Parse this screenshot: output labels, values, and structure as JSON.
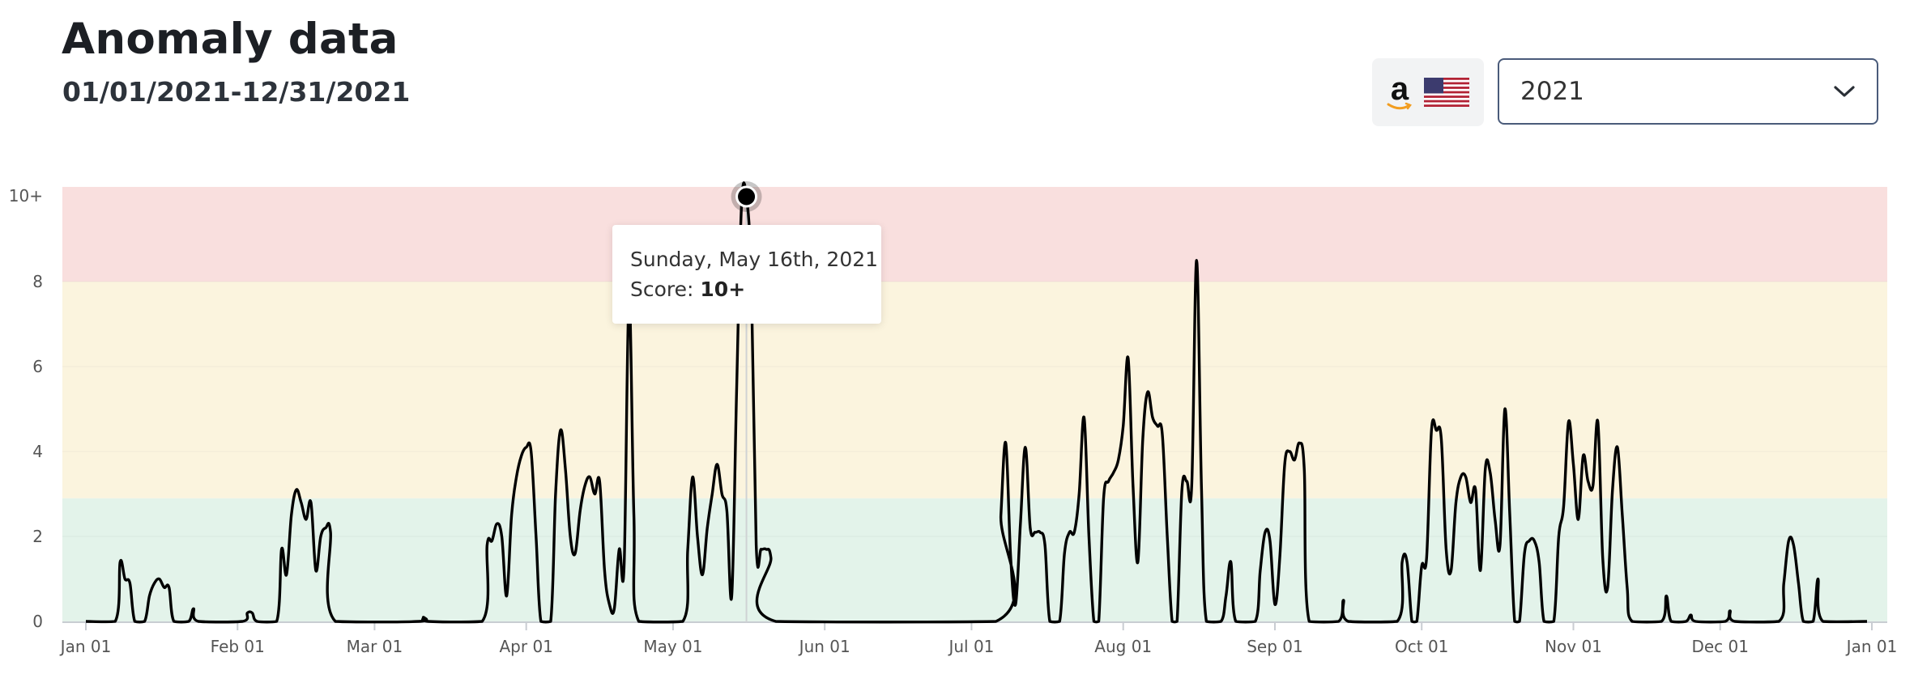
{
  "header": {
    "title": "Anomaly data",
    "date_range": "01/01/2021-12/31/2021"
  },
  "marketplace": {
    "logo_icon": "amazon-logo-icon",
    "logo_letter": "a",
    "flag_icon": "us-flag-icon"
  },
  "year_select": {
    "value": "2021",
    "icon": "chevron-down-icon"
  },
  "tooltip": {
    "date": "Sunday, May 16th, 2021",
    "score_label": "Score:",
    "score_value": "10+"
  },
  "colors": {
    "band_high": "#f9dfde",
    "band_medium": "#fbf4de",
    "band_low": "#e3f3ea",
    "line": "#000000"
  },
  "chart_data": {
    "type": "line",
    "title": "",
    "xlabel": "",
    "ylabel": "",
    "ylim": [
      0,
      10
    ],
    "y_ticks": [
      {
        "value": 0,
        "label": "0"
      },
      {
        "value": 2,
        "label": "2"
      },
      {
        "value": 4,
        "label": "4"
      },
      {
        "value": 6,
        "label": "6"
      },
      {
        "value": 8,
        "label": "8"
      },
      {
        "value": 10,
        "label": "10+"
      }
    ],
    "x_ticks": [
      {
        "date": "2021-01-01",
        "label": "Jan 01"
      },
      {
        "date": "2021-02-01",
        "label": "Feb 01"
      },
      {
        "date": "2021-03-01",
        "label": "Mar 01"
      },
      {
        "date": "2021-04-01",
        "label": "Apr 01"
      },
      {
        "date": "2021-05-01",
        "label": "May 01"
      },
      {
        "date": "2021-06-01",
        "label": "Jun 01"
      },
      {
        "date": "2021-07-01",
        "label": "Jul 01"
      },
      {
        "date": "2021-08-01",
        "label": "Aug 01"
      },
      {
        "date": "2021-09-01",
        "label": "Sep 01"
      },
      {
        "date": "2021-10-01",
        "label": "Oct 01"
      },
      {
        "date": "2021-11-01",
        "label": "Nov 01"
      },
      {
        "date": "2021-12-01",
        "label": "Dec 01"
      },
      {
        "date": "2022-01-01",
        "label": "Jan 01"
      }
    ],
    "bands": [
      {
        "from": 0,
        "to": 2.9,
        "level": "low"
      },
      {
        "from": 2.9,
        "to": 8,
        "level": "medium"
      },
      {
        "from": 8,
        "to": 10.2,
        "level": "high"
      }
    ],
    "grid": true,
    "legend": "none",
    "highlight": {
      "date": "2021-05-16",
      "value": 10
    },
    "series": [
      {
        "points": [
          [
            "2021-01-01",
            0
          ],
          [
            "2021-01-07",
            0
          ],
          [
            "2021-01-08",
            1.4
          ],
          [
            "2021-01-09",
            1.0
          ],
          [
            "2021-01-10",
            0.9
          ],
          [
            "2021-01-11",
            0
          ],
          [
            "2021-01-13",
            0
          ],
          [
            "2021-01-14",
            0.6
          ],
          [
            "2021-01-15",
            0.9
          ],
          [
            "2021-01-16",
            1.0
          ],
          [
            "2021-01-17",
            0.8
          ],
          [
            "2021-01-18",
            0.8
          ],
          [
            "2021-01-19",
            0
          ],
          [
            "2021-01-22",
            0
          ],
          [
            "2021-01-23",
            0.3
          ],
          [
            "2021-01-24",
            0
          ],
          [
            "2021-02-02",
            0
          ],
          [
            "2021-02-03",
            0.2
          ],
          [
            "2021-02-04",
            0.2
          ],
          [
            "2021-02-05",
            0
          ],
          [
            "2021-02-09",
            0
          ],
          [
            "2021-02-10",
            1.7
          ],
          [
            "2021-02-11",
            1.1
          ],
          [
            "2021-02-12",
            2.5
          ],
          [
            "2021-02-13",
            3.1
          ],
          [
            "2021-02-14",
            2.8
          ],
          [
            "2021-02-15",
            2.4
          ],
          [
            "2021-02-16",
            2.8
          ],
          [
            "2021-02-17",
            1.2
          ],
          [
            "2021-02-18",
            2.0
          ],
          [
            "2021-02-19",
            2.2
          ],
          [
            "2021-02-20",
            2.1
          ],
          [
            "2021-02-21",
            0
          ],
          [
            "2021-03-10",
            0
          ],
          [
            "2021-03-11",
            0.1
          ],
          [
            "2021-03-12",
            0
          ],
          [
            "2021-03-23",
            0
          ],
          [
            "2021-03-24",
            1.8
          ],
          [
            "2021-03-25",
            1.9
          ],
          [
            "2021-03-26",
            2.3
          ],
          [
            "2021-03-27",
            2.0
          ],
          [
            "2021-03-28",
            0.6
          ],
          [
            "2021-03-29",
            2.5
          ],
          [
            "2021-03-30",
            3.4
          ],
          [
            "2021-03-31",
            3.9
          ],
          [
            "2021-04-01",
            4.1
          ],
          [
            "2021-04-02",
            4.0
          ],
          [
            "2021-04-03",
            2.0
          ],
          [
            "2021-04-04",
            0
          ],
          [
            "2021-04-06",
            0
          ],
          [
            "2021-04-07",
            3.0
          ],
          [
            "2021-04-08",
            4.5
          ],
          [
            "2021-04-09",
            3.6
          ],
          [
            "2021-04-10",
            2.0
          ],
          [
            "2021-04-11",
            1.6
          ],
          [
            "2021-04-12",
            2.6
          ],
          [
            "2021-04-13",
            3.2
          ],
          [
            "2021-04-14",
            3.4
          ],
          [
            "2021-04-15",
            3.0
          ],
          [
            "2021-04-16",
            3.3
          ],
          [
            "2021-04-17",
            1.2
          ],
          [
            "2021-04-18",
            0.4
          ],
          [
            "2021-04-19",
            0.3
          ],
          [
            "2021-04-20",
            1.7
          ],
          [
            "2021-04-21",
            1.3
          ],
          [
            "2021-04-22",
            7.6
          ],
          [
            "2021-04-23",
            2.5
          ],
          [
            "2021-04-24",
            0
          ],
          [
            "2021-05-03",
            0
          ],
          [
            "2021-05-04",
            1.7
          ],
          [
            "2021-05-05",
            3.4
          ],
          [
            "2021-05-06",
            2.0
          ],
          [
            "2021-05-07",
            1.1
          ],
          [
            "2021-05-08",
            2.2
          ],
          [
            "2021-05-09",
            3.0
          ],
          [
            "2021-05-10",
            3.7
          ],
          [
            "2021-05-11",
            3.0
          ],
          [
            "2021-05-12",
            2.6
          ],
          [
            "2021-05-13",
            0.6
          ],
          [
            "2021-05-14",
            5.5
          ],
          [
            "2021-05-15",
            9.8
          ],
          [
            "2021-05-16",
            10.0
          ],
          [
            "2021-05-17",
            8.0
          ],
          [
            "2021-05-18",
            1.8
          ],
          [
            "2021-05-19",
            1.7
          ],
          [
            "2021-05-20",
            1.7
          ],
          [
            "2021-05-21",
            1.5
          ],
          [
            "2021-05-22",
            0
          ],
          [
            "2021-07-06",
            0
          ],
          [
            "2021-07-07",
            2.5
          ],
          [
            "2021-07-08",
            4.2
          ],
          [
            "2021-07-09",
            1.5
          ],
          [
            "2021-07-10",
            0.4
          ],
          [
            "2021-07-11",
            2.3
          ],
          [
            "2021-07-12",
            4.1
          ],
          [
            "2021-07-13",
            2.2
          ],
          [
            "2021-07-14",
            2.1
          ],
          [
            "2021-07-15",
            2.1
          ],
          [
            "2021-07-16",
            1.8
          ],
          [
            "2021-07-17",
            0
          ],
          [
            "2021-07-19",
            0
          ],
          [
            "2021-07-20",
            1.6
          ],
          [
            "2021-07-21",
            2.1
          ],
          [
            "2021-07-22",
            2.1
          ],
          [
            "2021-07-23",
            3.0
          ],
          [
            "2021-07-24",
            4.8
          ],
          [
            "2021-07-25",
            2.0
          ],
          [
            "2021-07-26",
            0
          ],
          [
            "2021-07-27",
            0
          ],
          [
            "2021-07-28",
            2.9
          ],
          [
            "2021-07-29",
            3.3
          ],
          [
            "2021-07-30",
            3.5
          ],
          [
            "2021-07-31",
            3.8
          ],
          [
            "2021-08-01",
            4.6
          ],
          [
            "2021-08-02",
            6.2
          ],
          [
            "2021-08-03",
            3.2
          ],
          [
            "2021-08-04",
            1.4
          ],
          [
            "2021-08-05",
            4.3
          ],
          [
            "2021-08-06",
            5.4
          ],
          [
            "2021-08-07",
            4.8
          ],
          [
            "2021-08-08",
            4.6
          ],
          [
            "2021-08-09",
            4.4
          ],
          [
            "2021-08-10",
            2.0
          ],
          [
            "2021-08-11",
            0
          ],
          [
            "2021-08-12",
            0
          ],
          [
            "2021-08-13",
            3.1
          ],
          [
            "2021-08-14",
            3.3
          ],
          [
            "2021-08-15",
            3.2
          ],
          [
            "2021-08-16",
            8.5
          ],
          [
            "2021-08-17",
            3.1
          ],
          [
            "2021-08-18",
            0
          ],
          [
            "2021-08-21",
            0
          ],
          [
            "2021-08-22",
            0.6
          ],
          [
            "2021-08-23",
            1.4
          ],
          [
            "2021-08-24",
            0
          ],
          [
            "2021-08-28",
            0
          ],
          [
            "2021-08-29",
            1.2
          ],
          [
            "2021-08-30",
            2.1
          ],
          [
            "2021-08-31",
            1.9
          ],
          [
            "2021-09-01",
            0.4
          ],
          [
            "2021-09-02",
            1.5
          ],
          [
            "2021-09-03",
            3.7
          ],
          [
            "2021-09-04",
            4.0
          ],
          [
            "2021-09-05",
            3.8
          ],
          [
            "2021-09-06",
            4.2
          ],
          [
            "2021-09-07",
            3.6
          ],
          [
            "2021-09-08",
            0
          ],
          [
            "2021-09-14",
            0
          ],
          [
            "2021-09-15",
            0.5
          ],
          [
            "2021-09-16",
            0
          ],
          [
            "2021-09-26",
            0
          ],
          [
            "2021-09-27",
            1.4
          ],
          [
            "2021-09-28",
            1.4
          ],
          [
            "2021-09-29",
            0
          ],
          [
            "2021-09-30",
            0
          ],
          [
            "2021-10-01",
            1.3
          ],
          [
            "2021-10-02",
            1.5
          ],
          [
            "2021-10-03",
            4.5
          ],
          [
            "2021-10-04",
            4.5
          ],
          [
            "2021-10-05",
            4.3
          ],
          [
            "2021-10-06",
            1.7
          ],
          [
            "2021-10-07",
            1.2
          ],
          [
            "2021-10-08",
            2.8
          ],
          [
            "2021-10-09",
            3.4
          ],
          [
            "2021-10-10",
            3.4
          ],
          [
            "2021-10-11",
            2.8
          ],
          [
            "2021-10-12",
            3.1
          ],
          [
            "2021-10-13",
            1.2
          ],
          [
            "2021-10-14",
            3.6
          ],
          [
            "2021-10-15",
            3.5
          ],
          [
            "2021-10-16",
            2.4
          ],
          [
            "2021-10-17",
            1.8
          ],
          [
            "2021-10-18",
            5.0
          ],
          [
            "2021-10-19",
            2.5
          ],
          [
            "2021-10-20",
            0
          ],
          [
            "2021-10-21",
            0
          ],
          [
            "2021-10-22",
            1.6
          ],
          [
            "2021-10-23",
            1.9
          ],
          [
            "2021-10-24",
            1.9
          ],
          [
            "2021-10-25",
            1.4
          ],
          [
            "2021-10-26",
            0
          ],
          [
            "2021-10-28",
            0
          ],
          [
            "2021-10-29",
            2.0
          ],
          [
            "2021-10-30",
            2.7
          ],
          [
            "2021-10-31",
            4.7
          ],
          [
            "2021-11-01",
            3.7
          ],
          [
            "2021-11-02",
            2.4
          ],
          [
            "2021-11-03",
            3.9
          ],
          [
            "2021-11-04",
            3.3
          ],
          [
            "2021-11-05",
            3.2
          ],
          [
            "2021-11-06",
            4.7
          ],
          [
            "2021-11-07",
            1.5
          ],
          [
            "2021-11-08",
            0.8
          ],
          [
            "2021-11-09",
            3.1
          ],
          [
            "2021-11-10",
            4.1
          ],
          [
            "2021-11-11",
            2.5
          ],
          [
            "2021-11-12",
            0.8
          ],
          [
            "2021-11-13",
            0
          ],
          [
            "2021-11-19",
            0
          ],
          [
            "2021-11-20",
            0.6
          ],
          [
            "2021-11-21",
            0
          ],
          [
            "2021-11-24",
            0
          ],
          [
            "2021-11-25",
            0.15
          ],
          [
            "2021-11-26",
            0
          ],
          [
            "2021-12-02",
            0
          ],
          [
            "2021-12-03",
            0.25
          ],
          [
            "2021-12-04",
            0
          ],
          [
            "2021-12-13",
            0
          ],
          [
            "2021-12-14",
            0.9
          ],
          [
            "2021-12-15",
            1.9
          ],
          [
            "2021-12-16",
            1.8
          ],
          [
            "2021-12-17",
            0.9
          ],
          [
            "2021-12-18",
            0
          ],
          [
            "2021-12-20",
            0
          ],
          [
            "2021-12-21",
            1.0
          ],
          [
            "2021-12-22",
            0
          ],
          [
            "2021-12-31",
            0
          ]
        ]
      }
    ]
  }
}
